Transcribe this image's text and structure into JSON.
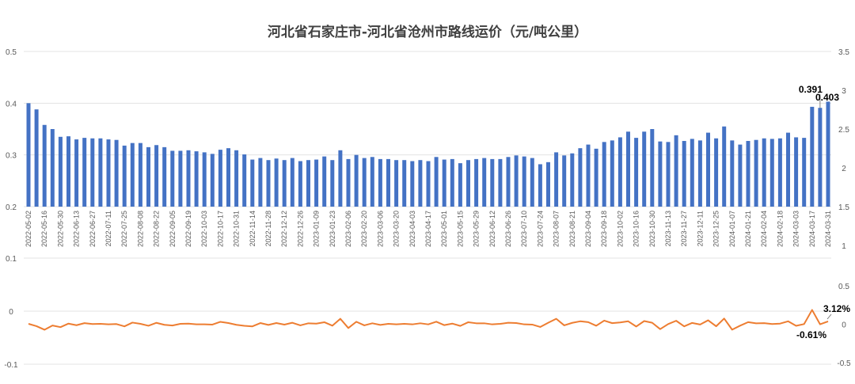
{
  "chart_data": [
    {
      "type": "bar",
      "title": "河北省石家庄市-河北省沧州市路线运价（元/吨公里）",
      "x_tick_labels": [
        "2022-05-02",
        "2022-05-16",
        "2022-05-30",
        "2022-06-13",
        "2022-06-27",
        "2022-07-11",
        "2022-07-25",
        "2022-08-08",
        "2022-08-22",
        "2022-09-05",
        "2022-09-19",
        "2022-10-03",
        "2022-10-17",
        "2022-10-31",
        "2022-11-14",
        "2022-11-28",
        "2022-12-12",
        "2022-12-26",
        "2023-01-09",
        "2023-01-23",
        "2023-02-06",
        "2023-02-20",
        "2023-03-06",
        "2023-03-20",
        "2023-04-03",
        "2023-04-17",
        "2023-05-01",
        "2023-05-15",
        "2023-05-29",
        "2023-06-12",
        "2023-06-26",
        "2023-07-10",
        "2023-07-24",
        "2023-08-07",
        "2023-08-21",
        "2023-09-04",
        "2023-09-18",
        "2023-10-02",
        "2023-10-16",
        "2023-10-30",
        "2023-11-13",
        "2023-11-27",
        "2023-12-11",
        "2023-12-25",
        "2024-01-07",
        "2024-01-21",
        "2024-02-04",
        "2024-02-18",
        "2024-03-03",
        "2024-03-17",
        "2024-03-31"
      ],
      "values": [
        0.4,
        0.388,
        0.358,
        0.35,
        0.335,
        0.336,
        0.33,
        0.333,
        0.332,
        0.332,
        0.33,
        0.329,
        0.318,
        0.323,
        0.323,
        0.315,
        0.319,
        0.315,
        0.308,
        0.308,
        0.309,
        0.307,
        0.305,
        0.302,
        0.31,
        0.313,
        0.309,
        0.301,
        0.291,
        0.294,
        0.29,
        0.293,
        0.29,
        0.294,
        0.288,
        0.29,
        0.291,
        0.297,
        0.29,
        0.309,
        0.292,
        0.3,
        0.294,
        0.296,
        0.292,
        0.292,
        0.29,
        0.29,
        0.288,
        0.29,
        0.288,
        0.296,
        0.291,
        0.292,
        0.284,
        0.29,
        0.292,
        0.294,
        0.292,
        0.292,
        0.296,
        0.299,
        0.297,
        0.294,
        0.282,
        0.286,
        0.305,
        0.299,
        0.303,
        0.313,
        0.32,
        0.312,
        0.325,
        0.328,
        0.334,
        0.345,
        0.333,
        0.345,
        0.35,
        0.326,
        0.325,
        0.338,
        0.327,
        0.331,
        0.328,
        0.343,
        0.332,
        0.355,
        0.328,
        0.32,
        0.327,
        0.329,
        0.332,
        0.331,
        0.332,
        0.343,
        0.334,
        0.333,
        0.393,
        0.391,
        0.403
      ],
      "data_labels": [
        {
          "index": 99,
          "text": "0.391"
        },
        {
          "index": 100,
          "text": "0.403"
        }
      ],
      "y_left": {
        "range": [
          0.2,
          0.5
        ],
        "ticks": [
          "0.5",
          "0.4",
          "0.3",
          "0.2"
        ]
      },
      "y_right": {
        "range": [
          1,
          3.5
        ],
        "ticks": [
          "3.5",
          "3",
          "2.5",
          "2",
          "1.5",
          "1"
        ]
      },
      "color": "#4472C4",
      "grid": true
    },
    {
      "type": "line",
      "values_pct": [
        0,
        -3.0,
        -7.7,
        -2.2,
        -4.3,
        0.3,
        -1.8,
        0.9,
        -0.3,
        0,
        -0.6,
        -0.3,
        -3.3,
        1.6,
        0,
        -2.5,
        1.3,
        -1.3,
        -2.2,
        0,
        0.3,
        -0.6,
        -0.7,
        -1.0,
        2.6,
        1.0,
        -1.3,
        -2.6,
        -3.3,
        1.0,
        -1.4,
        1.0,
        -1.0,
        1.4,
        -2.0,
        0.7,
        0.3,
        2.1,
        -2.4,
        6.6,
        -5.5,
        2.7,
        -2.0,
        0.7,
        -1.4,
        0,
        -0.7,
        0,
        -0.7,
        0.7,
        -0.7,
        2.8,
        -1.7,
        0.3,
        -2.7,
        2.1,
        0.7,
        0.7,
        -0.7,
        0,
        1.4,
        1.0,
        -0.7,
        -1.0,
        -4.1,
        1.4,
        6.6,
        -2.0,
        1.3,
        3.3,
        2.2,
        -2.5,
        4.2,
        0.9,
        1.8,
        3.3,
        -3.5,
        3.6,
        1.4,
        -6.9,
        -0.3,
        4.0,
        -3.3,
        1.2,
        -0.9,
        4.6,
        -3.2,
        6.9,
        -7.6,
        -2.4,
        2.2,
        0.6,
        0.9,
        -0.3,
        0.3,
        3.3,
        -2.6,
        -0.3,
        18.1,
        -0.61,
        3.12
      ],
      "data_labels": [
        {
          "index": 99,
          "text": "-0.61%"
        },
        {
          "index": 100,
          "text": "3.12%"
        }
      ],
      "y_left": {
        "range": [
          -0.1,
          0.1
        ],
        "ticks": [
          "0.1",
          "0",
          "-0.1"
        ]
      },
      "y_right": {
        "range": [
          -0.5,
          0.5
        ],
        "ticks": [
          "0.5",
          "0",
          "-0.5"
        ]
      },
      "color": "#ED7D31",
      "grid": true
    }
  ]
}
